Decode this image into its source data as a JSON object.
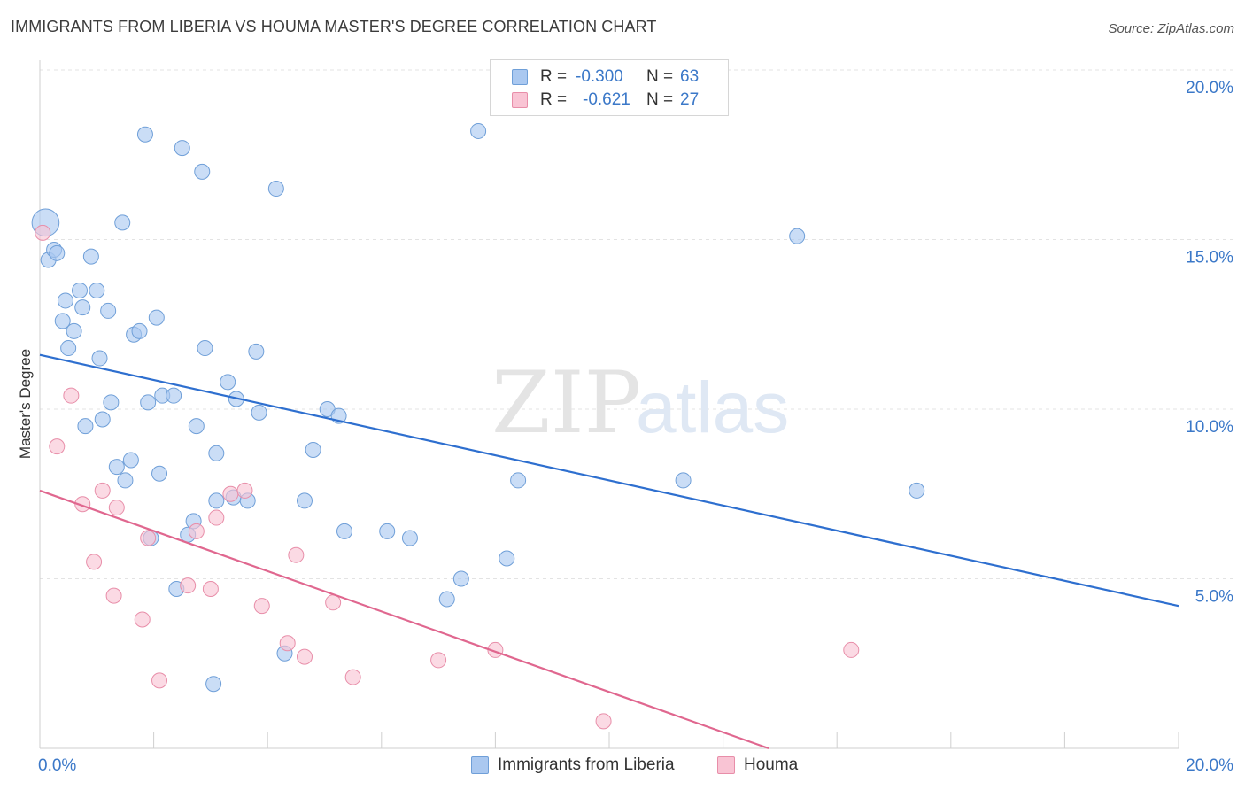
{
  "title": "IMMIGRANTS FROM LIBERIA VS HOUMA MASTER'S DEGREE CORRELATION CHART",
  "source": "Source: ZipAtlas.com",
  "watermark": {
    "zip": "ZIP",
    "atlas": "atlas"
  },
  "legend": {
    "r_label": "R =",
    "n_label": "N =",
    "rows": [
      {
        "r": "-0.300",
        "n": "63",
        "color": "#aac8f0",
        "border": "#6f9fd8"
      },
      {
        "r": "-0.621",
        "n": "27",
        "color": "#f9c4d4",
        "border": "#e88ea9"
      }
    ]
  },
  "bottom_legend": [
    {
      "label": "Immigrants from Liberia",
      "color": "#aac8f0",
      "border": "#6f9fd8"
    },
    {
      "label": "Houma",
      "color": "#f9c4d4",
      "border": "#e88ea9"
    }
  ],
  "chart_data": {
    "type": "scatter",
    "title": "IMMIGRANTS FROM LIBERIA VS HOUMA MASTER'S DEGREE CORRELATION CHART",
    "ylabel": "Master's Degree",
    "xlabel": "",
    "xlim": [
      0,
      20
    ],
    "ylim": [
      0,
      20
    ],
    "x_tick_labels": [
      "0.0%",
      "20.0%"
    ],
    "y_ticks": [
      5,
      10,
      15,
      20
    ],
    "y_tick_labels": [
      "5.0%",
      "10.0%",
      "15.0%",
      "20.0%"
    ],
    "series": [
      {
        "name": "Immigrants from Liberia",
        "color": "#aac8f0",
        "stroke": "#6f9fd8",
        "line_color": "#2e6fcf",
        "trend": {
          "x": [
            0,
            20
          ],
          "y": [
            11.6,
            4.2
          ]
        },
        "points": [
          [
            0.1,
            15.5,
            1.8
          ],
          [
            0.15,
            14.4,
            1
          ],
          [
            0.25,
            14.7,
            1
          ],
          [
            0.3,
            14.6,
            1
          ],
          [
            0.4,
            12.6,
            1
          ],
          [
            0.45,
            13.2,
            1
          ],
          [
            0.5,
            11.8,
            1
          ],
          [
            0.6,
            12.3,
            1
          ],
          [
            0.7,
            13.5,
            1
          ],
          [
            0.75,
            13.0,
            1
          ],
          [
            0.8,
            9.5,
            1
          ],
          [
            0.9,
            14.5,
            1
          ],
          [
            1.0,
            13.5,
            1
          ],
          [
            1.05,
            11.5,
            1
          ],
          [
            1.1,
            9.7,
            1
          ],
          [
            1.2,
            12.9,
            1
          ],
          [
            1.25,
            10.2,
            1
          ],
          [
            1.35,
            8.3,
            1
          ],
          [
            1.45,
            15.5,
            1
          ],
          [
            1.5,
            7.9,
            1
          ],
          [
            1.6,
            8.5,
            1
          ],
          [
            1.65,
            12.2,
            1
          ],
          [
            1.75,
            12.3,
            1
          ],
          [
            1.85,
            18.1,
            1
          ],
          [
            1.9,
            10.2,
            1
          ],
          [
            1.95,
            6.2,
            1
          ],
          [
            2.05,
            12.7,
            1
          ],
          [
            2.1,
            8.1,
            1
          ],
          [
            2.15,
            10.4,
            1
          ],
          [
            2.35,
            10.4,
            1
          ],
          [
            2.4,
            4.7,
            1
          ],
          [
            2.5,
            17.7,
            1
          ],
          [
            2.6,
            6.3,
            1
          ],
          [
            2.7,
            6.7,
            1
          ],
          [
            2.75,
            9.5,
            1
          ],
          [
            2.85,
            17.0,
            1
          ],
          [
            2.9,
            11.8,
            1
          ],
          [
            3.05,
            1.9,
            1
          ],
          [
            3.1,
            8.7,
            1
          ],
          [
            3.1,
            7.3,
            1
          ],
          [
            3.3,
            10.8,
            1
          ],
          [
            3.4,
            7.4,
            1
          ],
          [
            3.45,
            10.3,
            1
          ],
          [
            3.65,
            7.3,
            1
          ],
          [
            3.8,
            11.7,
            1
          ],
          [
            3.85,
            9.9,
            1
          ],
          [
            4.15,
            16.5,
            1
          ],
          [
            4.3,
            2.8,
            1
          ],
          [
            4.65,
            7.3,
            1
          ],
          [
            4.8,
            8.8,
            1
          ],
          [
            5.05,
            10.0,
            1
          ],
          [
            5.25,
            9.8,
            1
          ],
          [
            5.35,
            6.4,
            1
          ],
          [
            6.1,
            6.4,
            1
          ],
          [
            6.5,
            6.2,
            1
          ],
          [
            7.15,
            4.4,
            1
          ],
          [
            7.4,
            5.0,
            1
          ],
          [
            7.7,
            18.2,
            1
          ],
          [
            8.2,
            5.6,
            1
          ],
          [
            8.4,
            7.9,
            1
          ],
          [
            11.3,
            7.9,
            1
          ],
          [
            13.3,
            15.1,
            1
          ],
          [
            15.4,
            7.6,
            1
          ]
        ]
      },
      {
        "name": "Houma",
        "color": "#f9c4d4",
        "stroke": "#e88ea9",
        "line_color": "#e0678f",
        "trend": {
          "x": [
            0,
            12.8
          ],
          "y": [
            7.6,
            0.0
          ]
        },
        "points": [
          [
            0.05,
            15.2,
            1
          ],
          [
            0.3,
            8.9,
            1
          ],
          [
            0.55,
            10.4,
            1
          ],
          [
            0.75,
            7.2,
            1
          ],
          [
            0.95,
            5.5,
            1
          ],
          [
            1.1,
            7.6,
            1
          ],
          [
            1.3,
            4.5,
            1
          ],
          [
            1.35,
            7.1,
            1
          ],
          [
            1.8,
            3.8,
            1
          ],
          [
            1.9,
            6.2,
            1
          ],
          [
            2.1,
            2.0,
            1
          ],
          [
            2.6,
            4.8,
            1
          ],
          [
            2.75,
            6.4,
            1
          ],
          [
            3.0,
            4.7,
            1
          ],
          [
            3.1,
            6.8,
            1
          ],
          [
            3.35,
            7.5,
            1
          ],
          [
            3.6,
            7.6,
            1
          ],
          [
            3.9,
            4.2,
            1
          ],
          [
            4.35,
            3.1,
            1
          ],
          [
            4.5,
            5.7,
            1
          ],
          [
            4.65,
            2.7,
            1
          ],
          [
            5.15,
            4.3,
            1
          ],
          [
            5.5,
            2.1,
            1
          ],
          [
            7.0,
            2.6,
            1
          ],
          [
            8.0,
            2.9,
            1
          ],
          [
            9.9,
            0.8,
            1
          ],
          [
            14.25,
            2.9,
            1
          ]
        ]
      }
    ]
  }
}
